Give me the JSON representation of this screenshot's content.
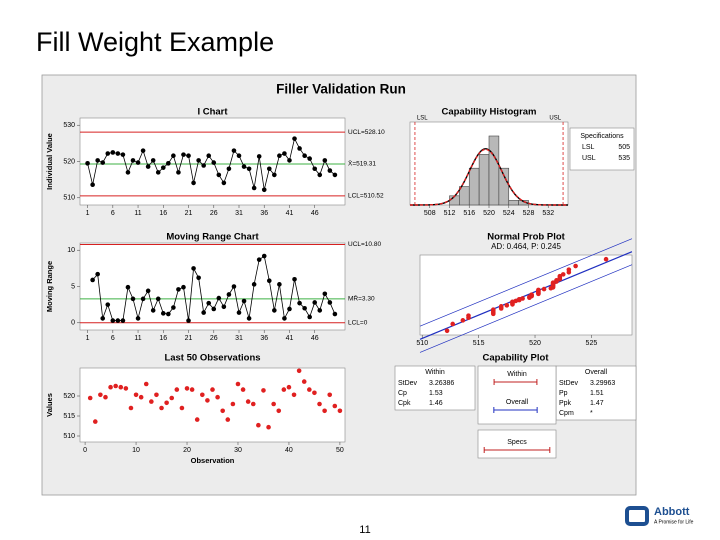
{
  "title": "Fill Weight Example",
  "page_number": "11",
  "logo": {
    "name": "Abbott",
    "tagline": "A Promise for Life"
  },
  "panel_title": "Filler Validation Run",
  "chart_data": [
    {
      "type": "control",
      "title": "I Chart",
      "y_label": "Individual Value",
      "color": "#000000",
      "x": [
        1,
        2,
        3,
        4,
        5,
        6,
        7,
        8,
        9,
        10,
        11,
        12,
        13,
        14,
        15,
        16,
        17,
        18,
        19,
        20,
        21,
        22,
        23,
        24,
        25,
        26,
        27,
        28,
        29,
        30,
        31,
        32,
        33,
        34,
        35,
        36,
        37,
        38,
        39,
        40,
        41,
        42,
        43,
        44,
        45,
        46,
        47,
        48,
        49,
        50
      ],
      "values": [
        519.5,
        513.6,
        520.3,
        519.7,
        522.2,
        522.5,
        522.2,
        521.9,
        517.0,
        520.3,
        519.7,
        523.0,
        518.6,
        520.3,
        517.0,
        518.3,
        519.5,
        521.6,
        517.0,
        521.9,
        521.6,
        514.1,
        520.3,
        518.9,
        521.6,
        519.7,
        516.3,
        514.1,
        518.0,
        523.0,
        521.6,
        518.6,
        518.0,
        512.7,
        521.4,
        512.2,
        518.0,
        516.3,
        521.6,
        522.2,
        520.3,
        526.3,
        523.6,
        521.6,
        520.8,
        518.0,
        516.3,
        520.3,
        517.5,
        516.3
      ],
      "xlim": [
        -0.5,
        52
      ],
      "xticks": [
        1,
        6,
        11,
        16,
        21,
        26,
        31,
        36,
        41,
        46
      ],
      "ylim": [
        508,
        532
      ],
      "yticks": [
        510,
        520,
        530
      ],
      "limits": [
        {
          "value": 528.1,
          "label": "UCL=528.10",
          "color": "#d62020"
        },
        {
          "value": 519.31,
          "label": "X̄=519.31",
          "color": "#3cb043"
        },
        {
          "value": 510.52,
          "label": "LCL=510.52",
          "color": "#d62020"
        }
      ]
    },
    {
      "type": "histogram",
      "title": "Capability Histogram",
      "color": "#b8b8b8",
      "bins": [
        512,
        514,
        516,
        518,
        520,
        522,
        524,
        526,
        528
      ],
      "counts": [
        2,
        4,
        8,
        11,
        15,
        8,
        1,
        1
      ],
      "xlim": [
        504,
        536
      ],
      "xticks": [
        508,
        512,
        516,
        520,
        524,
        528,
        532
      ],
      "spec_box": {
        "title": "Specifications",
        "rows": [
          {
            "label": "LSL",
            "value": 505
          },
          {
            "label": "USL",
            "value": 535
          }
        ]
      }
    },
    {
      "type": "control",
      "title": "Moving Range Chart",
      "y_label": "Moving Range",
      "color": "#000000",
      "x": [
        1,
        2,
        3,
        4,
        5,
        6,
        7,
        8,
        9,
        10,
        11,
        12,
        13,
        14,
        15,
        16,
        17,
        18,
        19,
        20,
        21,
        22,
        23,
        24,
        25,
        26,
        27,
        28,
        29,
        30,
        31,
        32,
        33,
        34,
        35,
        36,
        37,
        38,
        39,
        40,
        41,
        42,
        43,
        44,
        45,
        46,
        47,
        48,
        49,
        50
      ],
      "values": [
        null,
        5.9,
        6.7,
        0.6,
        2.5,
        0.3,
        0.3,
        0.3,
        4.9,
        3.3,
        0.6,
        3.3,
        4.4,
        1.7,
        3.3,
        1.3,
        1.2,
        2.1,
        4.6,
        4.9,
        0.3,
        7.5,
        6.2,
        1.4,
        2.7,
        1.9,
        3.4,
        2.2,
        3.9,
        5.0,
        1.4,
        3.0,
        0.6,
        5.3,
        8.7,
        9.2,
        5.8,
        1.7,
        5.3,
        0.6,
        1.9,
        6.0,
        2.7,
        2.0,
        0.8,
        2.8,
        1.7,
        4.0,
        2.8,
        1.2
      ],
      "xlim": [
        -0.5,
        52
      ],
      "xticks": [
        1,
        6,
        11,
        16,
        21,
        26,
        31,
        36,
        41,
        46
      ],
      "ylim": [
        -1,
        11
      ],
      "yticks": [
        0,
        5,
        10
      ],
      "limits": [
        {
          "value": 10.8,
          "label": "UCL=10.80",
          "color": "#d62020"
        },
        {
          "value": 3.3,
          "label": "MR̄=3.30",
          "color": "#3cb043"
        },
        {
          "value": 0,
          "label": "LCL=0",
          "color": "#d62020"
        }
      ]
    },
    {
      "type": "probability",
      "title": "Normal Prob Plot",
      "subtitle": "AD: 0.464, P: 0.245",
      "color": "#e02020",
      "values": [
        512.2,
        512.7,
        513.6,
        514.1,
        514.1,
        516.3,
        516.3,
        516.3,
        516.3,
        517.0,
        517.0,
        517.0,
        517.5,
        518.0,
        518.0,
        518.0,
        518.0,
        518.3,
        518.6,
        518.6,
        518.9,
        519.5,
        519.5,
        519.7,
        519.7,
        519.7,
        520.3,
        520.3,
        520.3,
        520.3,
        520.3,
        520.3,
        520.8,
        521.4,
        521.6,
        521.6,
        521.6,
        521.6,
        521.6,
        521.6,
        521.9,
        521.9,
        522.2,
        522.2,
        522.2,
        522.5,
        523.0,
        523.0,
        523.6,
        526.3
      ],
      "xlim": [
        509.8,
        528.6
      ],
      "xticks": [
        510,
        515,
        520,
        525
      ]
    },
    {
      "type": "run",
      "title": "Last 50 Observations",
      "y_label": "Values",
      "x_label": "Observation",
      "color": "#e02020",
      "x": [
        1,
        2,
        3,
        4,
        5,
        6,
        7,
        8,
        9,
        10,
        11,
        12,
        13,
        14,
        15,
        16,
        17,
        18,
        19,
        20,
        21,
        22,
        23,
        24,
        25,
        26,
        27,
        28,
        29,
        30,
        31,
        32,
        33,
        34,
        35,
        36,
        37,
        38,
        39,
        40,
        41,
        42,
        43,
        44,
        45,
        46,
        47,
        48,
        49,
        50
      ],
      "values": [
        519.5,
        513.6,
        520.3,
        519.7,
        522.2,
        522.5,
        522.2,
        521.9,
        517.0,
        520.3,
        519.7,
        523.0,
        518.6,
        520.3,
        517.0,
        518.3,
        519.5,
        521.6,
        517.0,
        521.9,
        521.6,
        514.1,
        520.3,
        518.9,
        521.6,
        519.7,
        516.3,
        514.1,
        518.0,
        523.0,
        521.6,
        518.6,
        518.0,
        512.7,
        521.4,
        512.2,
        518.0,
        516.3,
        521.6,
        522.2,
        520.3,
        526.3,
        523.6,
        521.6,
        520.8,
        518.0,
        516.3,
        520.3,
        517.5,
        516.3
      ],
      "xlim": [
        -1,
        51
      ],
      "xticks": [
        0,
        10,
        20,
        30,
        40,
        50
      ],
      "ylim": [
        508.5,
        527
      ],
      "yticks": [
        510,
        515,
        520
      ]
    },
    {
      "type": "capability",
      "title": "Capability Plot",
      "within": {
        "title": "Within",
        "stats": [
          {
            "label": "StDev",
            "value": 3.26386
          },
          {
            "label": "Cp",
            "value": 1.53
          },
          {
            "label": "Cpk",
            "value": 1.46
          }
        ]
      },
      "overall": {
        "title": "Overall",
        "stats": [
          {
            "label": "StDev",
            "value": 3.29963
          },
          {
            "label": "Pp",
            "value": 1.51
          },
          {
            "label": "Ppk",
            "value": 1.47
          },
          {
            "label": "Cpm",
            "value": "*"
          }
        ]
      },
      "intervals": [
        "Within",
        "Overall",
        "Specs"
      ]
    }
  ]
}
